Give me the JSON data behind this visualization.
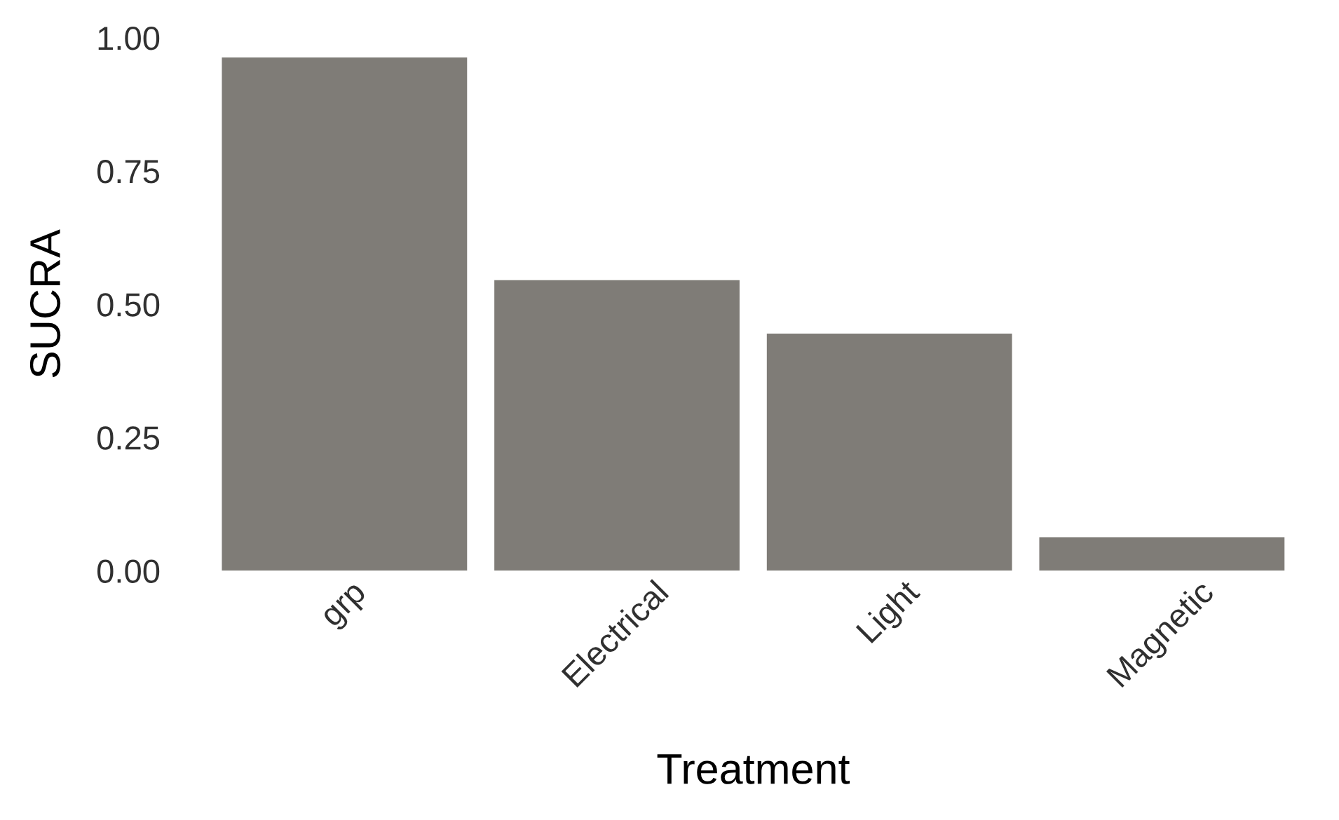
{
  "chart_data": {
    "type": "bar",
    "xlabel": "Treatment",
    "ylabel": "SUCRA",
    "categories": [
      "grp",
      "Electrical",
      "Light",
      "Magnetic"
    ],
    "values": [
      0.963,
      0.545,
      0.445,
      0.063
    ],
    "color": "#7f7c77",
    "ylim": [
      0,
      1
    ],
    "yticks": [
      {
        "value": 0,
        "label": "0.00"
      },
      {
        "value": 0.25,
        "label": "0.25"
      },
      {
        "value": 0.5,
        "label": "0.50"
      },
      {
        "value": 0.75,
        "label": "0.75"
      },
      {
        "value": 1,
        "label": "1.00"
      }
    ],
    "grid": false
  }
}
